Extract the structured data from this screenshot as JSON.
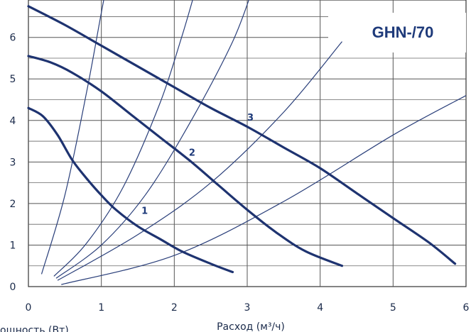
{
  "chart_data": {
    "type": "line",
    "title": "GHN-/70",
    "xlabel": "Расход (м³/ч)",
    "ylabel": "",
    "xlim": [
      0,
      6
    ],
    "ylim": [
      0,
      6.9
    ],
    "x_ticks": [
      "0",
      "1",
      "2",
      "3",
      "4",
      "5",
      "6"
    ],
    "y_ticks": [
      "0",
      "1",
      "2",
      "3",
      "4",
      "5",
      "6"
    ],
    "bottom_note": "ощность (Вт)",
    "grid": true,
    "series": [
      {
        "name": "1",
        "points": [
          [
            0,
            4.3
          ],
          [
            0.2,
            4.1
          ],
          [
            0.4,
            3.65
          ],
          [
            0.6,
            3.05
          ],
          [
            0.8,
            2.6
          ],
          [
            1.0,
            2.2
          ],
          [
            1.2,
            1.85
          ],
          [
            1.5,
            1.45
          ],
          [
            1.8,
            1.15
          ],
          [
            2.1,
            0.85
          ],
          [
            2.5,
            0.55
          ],
          [
            2.8,
            0.35
          ]
        ]
      },
      {
        "name": "2",
        "points": [
          [
            0,
            5.55
          ],
          [
            0.3,
            5.4
          ],
          [
            0.6,
            5.15
          ],
          [
            1.0,
            4.7
          ],
          [
            1.4,
            4.15
          ],
          [
            1.8,
            3.6
          ],
          [
            2.2,
            3.05
          ],
          [
            2.6,
            2.45
          ],
          [
            3.0,
            1.85
          ],
          [
            3.4,
            1.3
          ],
          [
            3.8,
            0.85
          ],
          [
            4.3,
            0.5
          ]
        ]
      },
      {
        "name": "3",
        "points": [
          [
            0,
            6.75
          ],
          [
            0.5,
            6.3
          ],
          [
            1.0,
            5.8
          ],
          [
            1.5,
            5.3
          ],
          [
            2.0,
            4.8
          ],
          [
            2.5,
            4.3
          ],
          [
            3.0,
            3.85
          ],
          [
            3.5,
            3.35
          ],
          [
            4.0,
            2.85
          ],
          [
            4.5,
            2.25
          ],
          [
            5.0,
            1.65
          ],
          [
            5.5,
            1.05
          ],
          [
            5.85,
            0.55
          ]
        ]
      }
    ],
    "system_curves": [
      [
        [
          0.18,
          0.3
        ],
        [
          0.5,
          2.2
        ],
        [
          0.8,
          4.7
        ],
        [
          1.0,
          6.6
        ],
        [
          1.1,
          7.5
        ]
      ],
      [
        [
          0.35,
          0.25
        ],
        [
          0.8,
          1.05
        ],
        [
          1.3,
          2.4
        ],
        [
          1.8,
          4.4
        ],
        [
          2.1,
          6.0
        ],
        [
          2.3,
          7.2
        ]
      ],
      [
        [
          0.38,
          0.2
        ],
        [
          1.0,
          1.0
        ],
        [
          1.6,
          2.2
        ],
        [
          2.2,
          3.9
        ],
        [
          2.8,
          5.9
        ],
        [
          3.1,
          7.3
        ]
      ],
      [
        [
          0.4,
          0.15
        ],
        [
          1.5,
          1.25
        ],
        [
          2.5,
          2.5
        ],
        [
          3.5,
          4.2
        ],
        [
          4.3,
          5.9
        ]
      ],
      [
        [
          0.45,
          0.05
        ],
        [
          2.0,
          0.75
        ],
        [
          3.5,
          2.05
        ],
        [
          5.0,
          3.65
        ],
        [
          6.0,
          4.6
        ]
      ]
    ],
    "curve_label_positions": {
      "1": [
        1.55,
        1.75
      ],
      "2": [
        2.2,
        3.15
      ],
      "3": [
        3.0,
        4.0
      ]
    }
  }
}
